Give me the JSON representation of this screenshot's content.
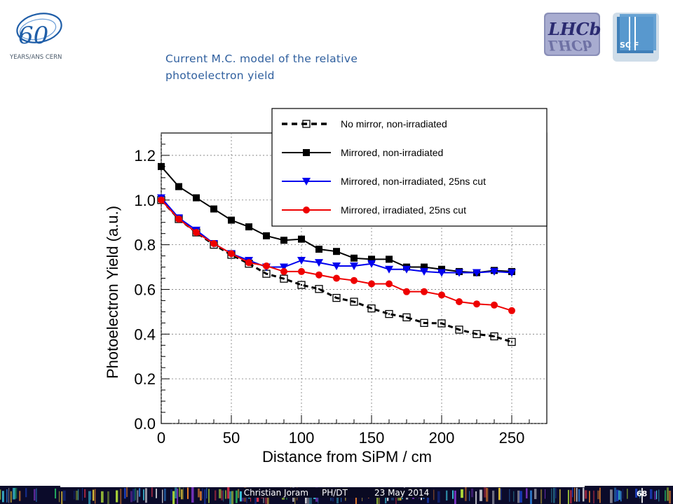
{
  "logos": {
    "cern_caption": "YEARS/ANS CERN",
    "cern_number": "60",
    "lhcb_text": "LHCb",
    "scifi_text": "SC F"
  },
  "title": {
    "line1": "Current M.C. model of the relative",
    "line2": "photoelectron yield"
  },
  "footer": {
    "text": "Christian Joram     PH/DT          23 May 2014",
    "page_number": "68"
  },
  "chart_data": {
    "type": "line",
    "xlabel": "Distance from SiPM  / cm",
    "ylabel": "Photoelectron Yield (a.u.)",
    "xlim": [
      0,
      275
    ],
    "ylim": [
      0,
      1.3
    ],
    "xticks": [
      0,
      50,
      100,
      150,
      200,
      250
    ],
    "yticks": [
      0.0,
      0.2,
      0.4,
      0.6,
      0.8,
      1.0,
      1.2
    ],
    "grid": "dotted",
    "legend_position": "top-right",
    "series": [
      {
        "name": "No mirror, non-irradiated",
        "color": "#000000",
        "marker": "open-square",
        "dashed": true,
        "x": [
          0,
          12.5,
          25,
          37.5,
          50,
          62.5,
          75,
          87.5,
          100,
          112.5,
          125,
          137.5,
          150,
          162.5,
          175,
          187.5,
          200,
          212.5,
          225,
          237.5,
          250
        ],
        "y": [
          1.0,
          0.915,
          0.855,
          0.8,
          0.755,
          0.715,
          0.67,
          0.648,
          0.62,
          0.602,
          0.562,
          0.545,
          0.515,
          0.49,
          0.475,
          0.45,
          0.448,
          0.42,
          0.4,
          0.39,
          0.365
        ]
      },
      {
        "name": "Mirrored, non-irradiated",
        "color": "#000000",
        "marker": "filled-square",
        "dashed": false,
        "x": [
          0,
          12.5,
          25,
          37.5,
          50,
          62.5,
          75,
          87.5,
          100,
          112.5,
          125,
          137.5,
          150,
          162.5,
          175,
          187.5,
          200,
          212.5,
          225,
          237.5,
          250
        ],
        "y": [
          1.15,
          1.06,
          1.01,
          0.96,
          0.91,
          0.88,
          0.84,
          0.82,
          0.825,
          0.78,
          0.77,
          0.74,
          0.735,
          0.735,
          0.7,
          0.7,
          0.69,
          0.68,
          0.675,
          0.685,
          0.68
        ]
      },
      {
        "name": "Mirrored, non-irradiated, 25ns cut",
        "color": "#0000ee",
        "marker": "down-triangle",
        "dashed": false,
        "x": [
          0,
          12.5,
          25,
          37.5,
          50,
          62.5,
          75,
          87.5,
          100,
          112.5,
          125,
          137.5,
          150,
          162.5,
          175,
          187.5,
          200,
          212.5,
          225,
          237.5,
          250
        ],
        "y": [
          1.01,
          0.92,
          0.865,
          0.805,
          0.76,
          0.73,
          0.7,
          0.7,
          0.73,
          0.72,
          0.705,
          0.705,
          0.715,
          0.69,
          0.69,
          0.68,
          0.675,
          0.675,
          0.675,
          0.68,
          0.675
        ]
      },
      {
        "name": "Mirrored, irradiated, 25ns cut",
        "color": "#ee0000",
        "marker": "filled-circle",
        "dashed": false,
        "x": [
          0,
          12.5,
          25,
          37.5,
          50,
          62.5,
          75,
          87.5,
          100,
          112.5,
          125,
          137.5,
          150,
          162.5,
          175,
          187.5,
          200,
          212.5,
          225,
          237.5,
          250
        ],
        "y": [
          1.0,
          0.915,
          0.855,
          0.805,
          0.76,
          0.72,
          0.705,
          0.68,
          0.68,
          0.665,
          0.65,
          0.64,
          0.625,
          0.625,
          0.59,
          0.59,
          0.575,
          0.545,
          0.535,
          0.53,
          0.505
        ]
      }
    ]
  }
}
